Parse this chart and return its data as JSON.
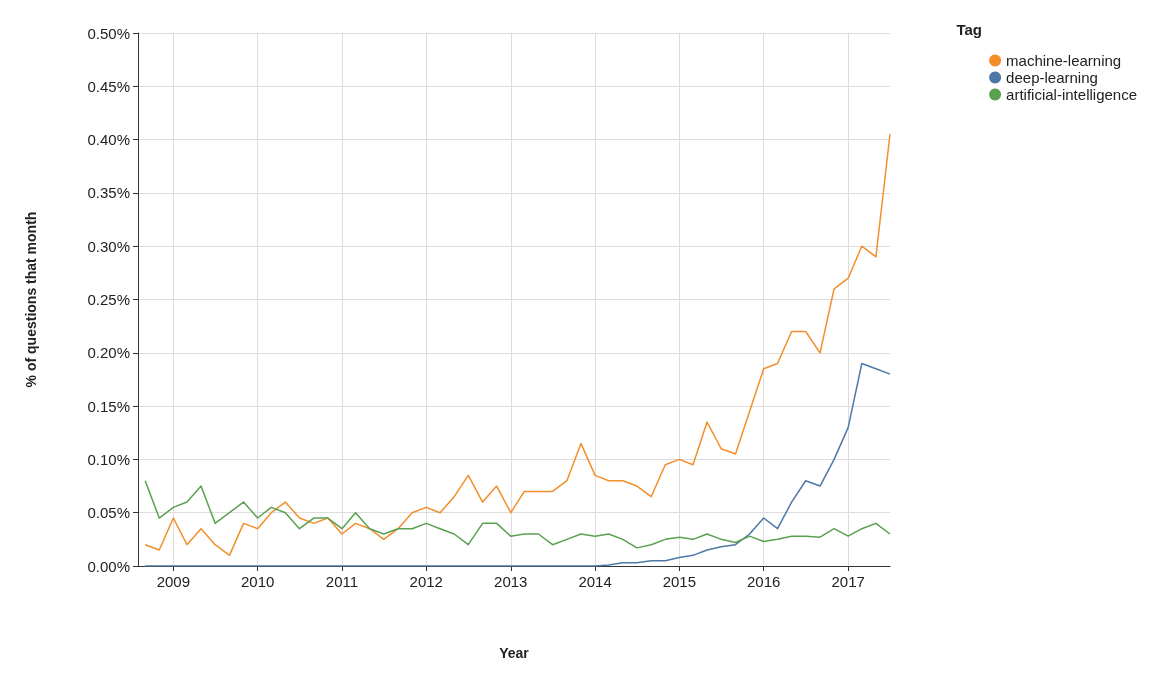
{
  "chart_data": {
    "type": "line",
    "xlabel": "Year",
    "ylabel": "% of questions that month",
    "legend_title": "Tag",
    "legend": "top right",
    "grid": true,
    "x": [
      "2008-09",
      "2008-11",
      "2009-01",
      "2009-03",
      "2009-05",
      "2009-07",
      "2009-09",
      "2009-11",
      "2010-01",
      "2010-03",
      "2010-05",
      "2010-07",
      "2010-09",
      "2010-11",
      "2011-01",
      "2011-03",
      "2011-05",
      "2011-07",
      "2011-09",
      "2011-11",
      "2012-01",
      "2012-03",
      "2012-05",
      "2012-07",
      "2012-09",
      "2012-11",
      "2013-01",
      "2013-03",
      "2013-05",
      "2013-07",
      "2013-09",
      "2013-11",
      "2014-01",
      "2014-03",
      "2014-05",
      "2014-07",
      "2014-09",
      "2014-11",
      "2015-01",
      "2015-03",
      "2015-05",
      "2015-07",
      "2015-09",
      "2015-11",
      "2016-01",
      "2016-03",
      "2016-05",
      "2016-07",
      "2016-09",
      "2016-11",
      "2017-01",
      "2017-03",
      "2017-05",
      "2017-07"
    ],
    "xlim": [
      "2008-08",
      "2017-07"
    ],
    "xticks": [
      {
        "value": "2009",
        "label": "2009"
      },
      {
        "value": "2010",
        "label": "2010"
      },
      {
        "value": "2011",
        "label": "2011"
      },
      {
        "value": "2012",
        "label": "2012"
      },
      {
        "value": "2013",
        "label": "2013"
      },
      {
        "value": "2014",
        "label": "2014"
      },
      {
        "value": "2015",
        "label": "2015"
      },
      {
        "value": "2016",
        "label": "2016"
      },
      {
        "value": "2017",
        "label": "2017"
      }
    ],
    "ylim": [
      0,
      0.5
    ],
    "yticks": [
      {
        "value": 0,
        "label": "0.00%"
      },
      {
        "value": 0.05,
        "label": "0.05%"
      },
      {
        "value": 0.1,
        "label": "0.10%"
      },
      {
        "value": 0.15,
        "label": "0.15%"
      },
      {
        "value": 0.2,
        "label": "0.20%"
      },
      {
        "value": 0.25,
        "label": "0.25%"
      },
      {
        "value": 0.3,
        "label": "0.30%"
      },
      {
        "value": 0.35,
        "label": "0.35%"
      },
      {
        "value": 0.4,
        "label": "0.40%"
      },
      {
        "value": 0.45,
        "label": "0.45%"
      },
      {
        "value": 0.5,
        "label": "0.50%"
      }
    ],
    "series": [
      {
        "name": "machine-learning",
        "color": "#f28e2b",
        "values": [
          0.02,
          0.015,
          0.045,
          0.02,
          0.035,
          0.02,
          0.01,
          0.04,
          0.035,
          0.05,
          0.06,
          0.045,
          0.04,
          0.045,
          0.03,
          0.04,
          0.035,
          0.025,
          0.035,
          0.05,
          0.055,
          0.05,
          0.065,
          0.085,
          0.06,
          0.075,
          0.05,
          0.07,
          0.07,
          0.07,
          0.08,
          0.115,
          0.085,
          0.08,
          0.08,
          0.075,
          0.065,
          0.095,
          0.1,
          0.095,
          0.135,
          0.11,
          0.105,
          0.145,
          0.185,
          0.19,
          0.22,
          0.22,
          0.2,
          0.26,
          0.27,
          0.3,
          0.29,
          0.405
        ]
      },
      {
        "name": "deep-learning",
        "color": "#4e79a7",
        "values": [
          0,
          0,
          0,
          0,
          0,
          0,
          0,
          0,
          0,
          0,
          0,
          0,
          0,
          0,
          0,
          0,
          0,
          0,
          0,
          0,
          0,
          0,
          0,
          0,
          0,
          0,
          0,
          0,
          0,
          0,
          0,
          0,
          0,
          0.001,
          0.003,
          0.003,
          0.005,
          0.005,
          0.008,
          0.01,
          0.015,
          0.018,
          0.02,
          0.03,
          0.045,
          0.035,
          0.06,
          0.08,
          0.075,
          0.1,
          0.13,
          0.19,
          0.185,
          0.18
        ]
      },
      {
        "name": "artificial-intelligence",
        "color": "#59a14f",
        "values": [
          0.08,
          0.045,
          0.055,
          0.06,
          0.075,
          0.04,
          0.05,
          0.06,
          0.045,
          0.055,
          0.05,
          0.035,
          0.045,
          0.045,
          0.035,
          0.05,
          0.035,
          0.03,
          0.035,
          0.035,
          0.04,
          0.035,
          0.03,
          0.02,
          0.04,
          0.04,
          0.028,
          0.03,
          0.03,
          0.02,
          0.025,
          0.03,
          0.028,
          0.03,
          0.025,
          0.017,
          0.02,
          0.025,
          0.027,
          0.025,
          0.03,
          0.025,
          0.022,
          0.028,
          0.023,
          0.025,
          0.028,
          0.028,
          0.027,
          0.035,
          0.028,
          0.035,
          0.04,
          0.03
        ]
      }
    ]
  }
}
